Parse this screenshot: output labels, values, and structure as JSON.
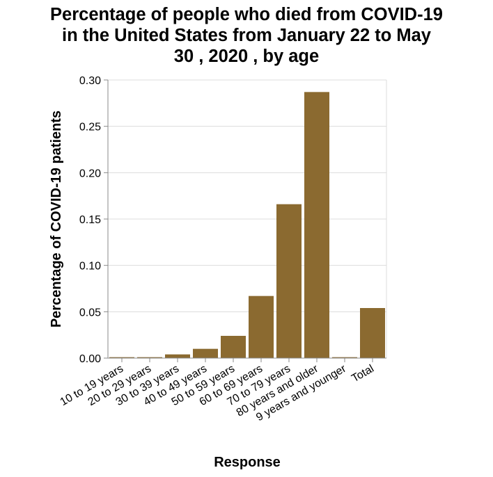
{
  "chart_data": {
    "type": "bar",
    "title_lines": [
      "Percentage of people who died from COVID-19",
      "in the United States from January 22 to May",
      "30 , 2020 , by age"
    ],
    "xlabel": "Response",
    "ylabel": "Percentage of COVID-19 patients",
    "categories": [
      "10 to 19 years",
      "20 to 29 years",
      "30 to 39 years",
      "40 to 49 years",
      "50 to 59 years",
      "60 to 69 years",
      "70 to 79 years",
      "80 years and older",
      "9 years and younger",
      "Total"
    ],
    "values": [
      0.001,
      0.001,
      0.004,
      0.01,
      0.024,
      0.067,
      0.166,
      0.287,
      0.001,
      0.054
    ],
    "ylim": [
      0,
      0.3
    ],
    "yticks": [
      "0.00",
      "0.05",
      "0.10",
      "0.15",
      "0.20",
      "0.25",
      "0.30"
    ],
    "grid": true,
    "bar_color": "#8b6a30"
  }
}
